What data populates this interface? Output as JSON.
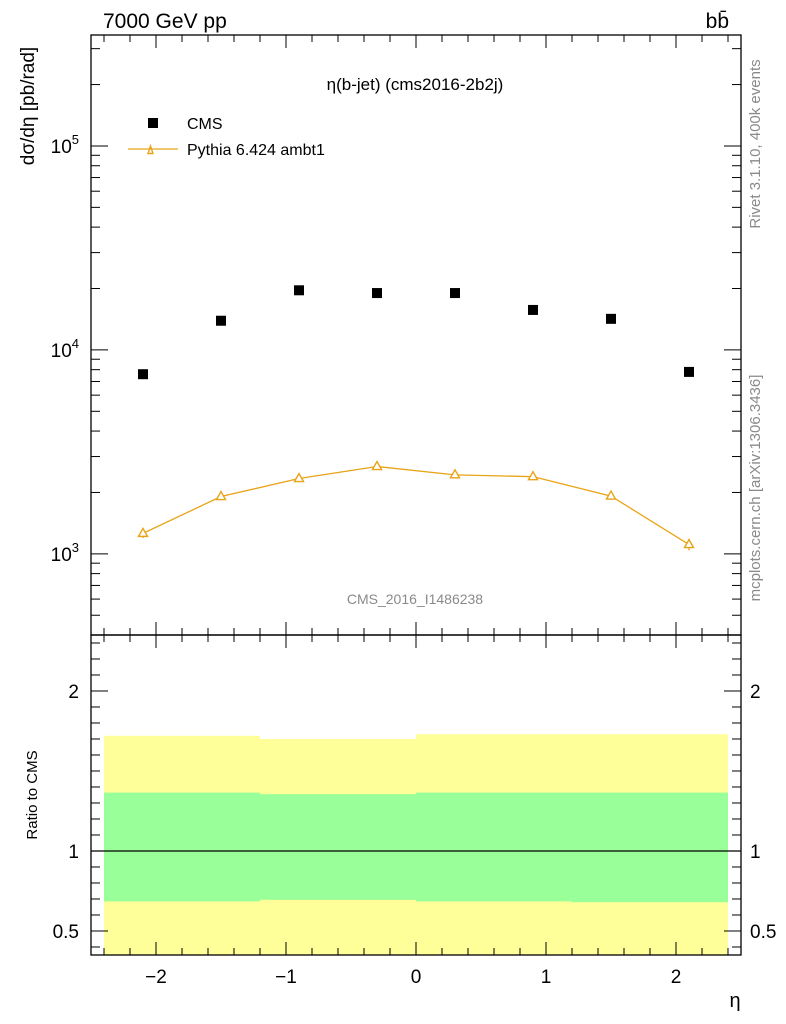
{
  "header": {
    "left": "7000 GeV pp",
    "right": "bb̄"
  },
  "side_labels": {
    "rivet": "Rivet 3.1.10,  400k events",
    "mcplots": "mcplots.cern.ch [arXiv:1306.3436]"
  },
  "chart_data": [
    {
      "type": "scatter",
      "title": "η(b-jet) (cms2016-2b2j)",
      "watermark": "CMS_2016_I1486238",
      "ylabel": "dσ/dη [pb/rad]",
      "yscale": "log",
      "xlim": [
        -2.5,
        2.5
      ],
      "ylim": [
        400,
        350000
      ],
      "ytick_labels": [
        {
          "value": 1000,
          "base": "10",
          "exp": "3"
        },
        {
          "value": 10000,
          "base": "10",
          "exp": "4"
        },
        {
          "value": 100000,
          "base": "10",
          "exp": "5"
        }
      ],
      "legend_position": "top-left",
      "series": [
        {
          "name": "CMS",
          "marker": "square",
          "color": "#000000",
          "x": [
            -2.1,
            -1.5,
            -0.9,
            -0.3,
            0.3,
            0.9,
            1.5,
            2.1
          ],
          "y": [
            7600,
            13900,
            19600,
            19000,
            19000,
            15700,
            14200,
            7800
          ]
        },
        {
          "name": "Pythia 6.424 ambt1",
          "marker": "triangle-open",
          "color": "#e8a317",
          "x": [
            -2.1,
            -1.5,
            -0.9,
            -0.3,
            0.3,
            0.9,
            1.5,
            2.1
          ],
          "y": [
            1260,
            1910,
            2340,
            2680,
            2440,
            2390,
            1920,
            1110
          ],
          "yerr": [
            65,
            75,
            80,
            90,
            85,
            85,
            80,
            70
          ]
        }
      ]
    },
    {
      "type": "area",
      "ylabel": "Ratio to CMS",
      "xlabel": "η",
      "xlim": [
        -2.5,
        2.5
      ],
      "ylim": [
        0.35,
        2.35
      ],
      "xtick_labels": [
        "−2",
        "−1",
        "0",
        "1",
        "2"
      ],
      "xtick_values": [
        -2,
        -1,
        0,
        1,
        2
      ],
      "ytick_labels": [
        "0.5",
        "1",
        "2"
      ],
      "ytick_values": [
        0.5,
        1,
        2
      ],
      "reference_line": 1,
      "bands": [
        {
          "name": "outer",
          "color": "#ffff99",
          "bins": [
            {
              "x0": -2.4,
              "x1": -1.2,
              "lo": 0.35,
              "hi": 1.72
            },
            {
              "x0": -1.2,
              "x1": 0.0,
              "lo": 0.35,
              "hi": 1.7
            },
            {
              "x0": 0.0,
              "x1": 1.2,
              "lo": 0.35,
              "hi": 1.73
            },
            {
              "x0": 1.2,
              "x1": 2.4,
              "lo": 0.35,
              "hi": 1.73
            }
          ]
        },
        {
          "name": "inner",
          "color": "#99ff99",
          "bins": [
            {
              "x0": -2.4,
              "x1": -1.2,
              "lo": 0.685,
              "hi": 1.365
            },
            {
              "x0": -1.2,
              "x1": 0.0,
              "lo": 0.695,
              "hi": 1.355
            },
            {
              "x0": 0.0,
              "x1": 1.2,
              "lo": 0.685,
              "hi": 1.365
            },
            {
              "x0": 1.2,
              "x1": 2.4,
              "lo": 0.68,
              "hi": 1.365
            }
          ]
        }
      ]
    }
  ]
}
